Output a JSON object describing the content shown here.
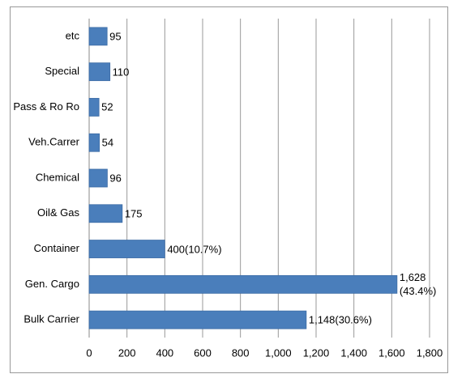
{
  "chart_data": {
    "type": "bar",
    "orientation": "horizontal",
    "categories": [
      "etc",
      "Special",
      "Pass & Ro Ro",
      "Veh.Carrer",
      "Chemical",
      "Oil& Gas",
      "Container",
      "Gen. Cargo",
      "Bulk Carrier"
    ],
    "values": [
      95,
      110,
      52,
      54,
      96,
      175,
      400,
      1628,
      1148
    ],
    "value_labels": [
      "95",
      "110",
      "52",
      "54",
      "96",
      "175",
      "400(10.7%)",
      "1,628 (43.4%)",
      "1,148(30.6%)"
    ],
    "color": "#4a7ebb",
    "xlim": [
      0,
      1800
    ],
    "xticks": [
      0,
      200,
      400,
      600,
      800,
      {
        "value": 1000,
        "label": "1,000"
      },
      {
        "value": 1200,
        "label": "1,200"
      },
      {
        "value": 1400,
        "label": "1,400"
      },
      {
        "value": 1600,
        "label": "1,600"
      },
      {
        "value": 1800,
        "label": "1,800"
      }
    ],
    "grid": true
  }
}
